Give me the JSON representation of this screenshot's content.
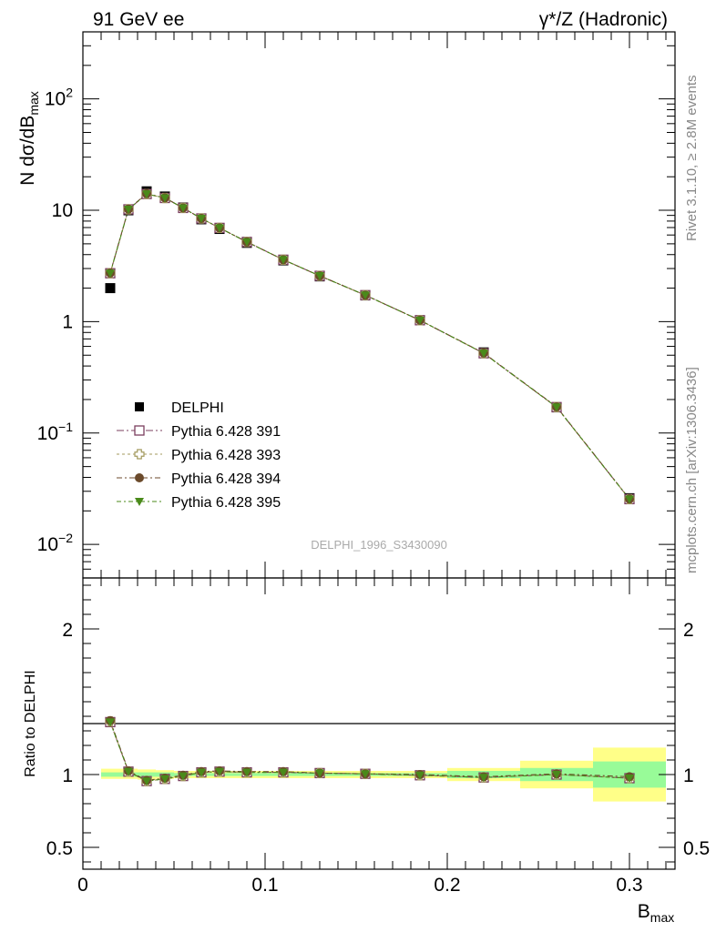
{
  "header": {
    "left": "91 GeV ee",
    "right": "γ*/Z (Hadronic)"
  },
  "side_labels": {
    "rivet": "Rivet 3.1.10, ≥ 2.8M events",
    "mcplots": "mcplots.cern.ch [arXiv:1306.3436]"
  },
  "watermark": "DELPHI_1996_S3430090",
  "colors": {
    "data": "#000000",
    "p391": "#7b3f5f",
    "p393": "#a39a5e",
    "p394": "#6b4a2b",
    "p395": "#4a8a1a",
    "band_inner": "#98fb98",
    "band_outer": "#ffff88"
  },
  "chart_data": [
    {
      "type": "line",
      "panel": "main",
      "ylabel": "N dσ/dB",
      "ylabel_sub": "max",
      "y_scale": "log",
      "ylim": [
        0.005,
        400
      ],
      "xlim": [
        0,
        0.325
      ],
      "y_ticks": [
        {
          "v": 0.01,
          "base": "10",
          "exp": "−2"
        },
        {
          "v": 0.1,
          "base": "10",
          "exp": "−1"
        },
        {
          "v": 1,
          "base": "1",
          "exp": ""
        },
        {
          "v": 10,
          "base": "10",
          "exp": ""
        },
        {
          "v": 100,
          "base": "10",
          "exp": "2"
        }
      ],
      "x": [
        0.015,
        0.025,
        0.035,
        0.045,
        0.055,
        0.065,
        0.075,
        0.09,
        0.11,
        0.13,
        0.155,
        0.185,
        0.22,
        0.26,
        0.3
      ],
      "data": [
        2.0,
        10.0,
        14.8,
        13.3,
        10.6,
        8.3,
        6.8,
        5.1,
        3.55,
        2.55,
        1.72,
        1.03,
        0.53,
        0.17,
        0.026
      ],
      "series": [
        {
          "name": "Pythia 6.428 391",
          "key": "p391",
          "marker": "open-square",
          "values": [
            2.72,
            10.2,
            14.0,
            12.9,
            10.5,
            8.45,
            6.95,
            5.2,
            3.6,
            2.58,
            1.73,
            1.03,
            0.52,
            0.171,
            0.0255
          ]
        },
        {
          "name": "Pythia 6.428 393",
          "key": "p393",
          "marker": "open-cross",
          "values": [
            2.73,
            10.2,
            14.0,
            12.9,
            10.5,
            8.45,
            6.95,
            5.2,
            3.6,
            2.58,
            1.73,
            1.03,
            0.52,
            0.171,
            0.0255
          ]
        },
        {
          "name": "Pythia 6.428 394",
          "key": "p394",
          "marker": "filled-circle",
          "values": [
            2.74,
            10.25,
            14.1,
            12.95,
            10.5,
            8.45,
            6.95,
            5.2,
            3.6,
            2.58,
            1.73,
            1.03,
            0.523,
            0.172,
            0.0256
          ]
        },
        {
          "name": "Pythia 6.428 395",
          "key": "p395",
          "marker": "filled-triangle-down",
          "values": [
            2.72,
            10.2,
            14.0,
            12.9,
            10.5,
            8.45,
            6.95,
            5.2,
            3.6,
            2.58,
            1.73,
            1.03,
            0.52,
            0.171,
            0.0255
          ]
        }
      ],
      "legend": {
        "data_name": "DELPHI",
        "position": "lower-left"
      }
    },
    {
      "type": "line",
      "panel": "ratio",
      "ylabel": "Ratio to DELPHI",
      "xlabel": "B",
      "xlabel_sub": "max",
      "ylim": [
        0.35,
        2.35
      ],
      "xlim": [
        0,
        0.325
      ],
      "y_ticks": [
        {
          "v": 0.5,
          "label": "0.5"
        },
        {
          "v": 1,
          "label": "1"
        },
        {
          "v": 2,
          "label": "2"
        }
      ],
      "x_ticks": [
        {
          "v": 0,
          "label": "0"
        },
        {
          "v": 0.1,
          "label": "0.1"
        },
        {
          "v": 0.2,
          "label": "0.2"
        },
        {
          "v": 0.3,
          "label": "0.3"
        }
      ],
      "bands": [
        {
          "x_range": [
            0.01,
            0.02
          ],
          "inner": [
            0.985,
            1.015
          ],
          "outer": [
            0.97,
            1.04
          ]
        },
        {
          "x_range": [
            0.02,
            0.03
          ],
          "inner": [
            0.985,
            1.015
          ],
          "outer": [
            0.97,
            1.04
          ]
        },
        {
          "x_range": [
            0.03,
            0.04
          ],
          "inner": [
            0.985,
            1.015
          ],
          "outer": [
            0.965,
            1.035
          ]
        },
        {
          "x_range": [
            0.04,
            0.05
          ],
          "inner": [
            0.985,
            1.015
          ],
          "outer": [
            0.97,
            1.03
          ]
        },
        {
          "x_range": [
            0.05,
            0.06
          ],
          "inner": [
            0.99,
            1.01
          ],
          "outer": [
            0.975,
            1.025
          ]
        },
        {
          "x_range": [
            0.06,
            0.07
          ],
          "inner": [
            0.99,
            1.01
          ],
          "outer": [
            0.975,
            1.025
          ]
        },
        {
          "x_range": [
            0.07,
            0.08
          ],
          "inner": [
            0.99,
            1.01
          ],
          "outer": [
            0.975,
            1.025
          ]
        },
        {
          "x_range": [
            0.08,
            0.1
          ],
          "inner": [
            0.99,
            1.01
          ],
          "outer": [
            0.975,
            1.025
          ]
        },
        {
          "x_range": [
            0.1,
            0.12
          ],
          "inner": [
            0.99,
            1.01
          ],
          "outer": [
            0.975,
            1.025
          ]
        },
        {
          "x_range": [
            0.12,
            0.14
          ],
          "inner": [
            0.99,
            1.01
          ],
          "outer": [
            0.975,
            1.025
          ]
        },
        {
          "x_range": [
            0.14,
            0.17
          ],
          "inner": [
            0.99,
            1.01
          ],
          "outer": [
            0.975,
            1.025
          ]
        },
        {
          "x_range": [
            0.17,
            0.2
          ],
          "inner": [
            0.99,
            1.01
          ],
          "outer": [
            0.975,
            1.025
          ]
        },
        {
          "x_range": [
            0.2,
            0.24
          ],
          "inner": [
            0.975,
            1.025
          ],
          "outer": [
            0.955,
            1.045
          ]
        },
        {
          "x_range": [
            0.24,
            0.28
          ],
          "inner": [
            0.955,
            1.045
          ],
          "outer": [
            0.905,
            1.095
          ]
        },
        {
          "x_range": [
            0.28,
            0.32
          ],
          "inner": [
            0.91,
            1.09
          ],
          "outer": [
            0.815,
            1.185
          ]
        }
      ],
      "x": [
        0.015,
        0.025,
        0.035,
        0.045,
        0.055,
        0.065,
        0.075,
        0.09,
        0.11,
        0.13,
        0.155,
        0.185,
        0.22,
        0.26,
        0.3
      ],
      "series": [
        {
          "name": "Pythia 6.428 391",
          "key": "p391",
          "marker": "open-square",
          "values": [
            1.36,
            1.02,
            0.955,
            0.97,
            0.99,
            1.015,
            1.02,
            1.015,
            1.015,
            1.01,
            1.005,
            0.995,
            0.98,
            1.0,
            0.975
          ]
        },
        {
          "name": "Pythia 6.428 393",
          "key": "p393",
          "marker": "open-cross",
          "values": [
            1.365,
            1.02,
            0.955,
            0.97,
            0.99,
            1.015,
            1.02,
            1.015,
            1.015,
            1.01,
            1.005,
            0.995,
            0.98,
            1.0,
            0.975
          ]
        },
        {
          "name": "Pythia 6.428 394",
          "key": "p394",
          "marker": "filled-circle",
          "values": [
            1.37,
            1.025,
            0.96,
            0.975,
            0.995,
            1.02,
            1.025,
            1.02,
            1.02,
            1.01,
            1.005,
            1.0,
            0.985,
            1.005,
            0.985
          ]
        },
        {
          "name": "Pythia 6.428 395",
          "key": "p395",
          "marker": "filled-triangle-down",
          "values": [
            1.36,
            1.02,
            0.955,
            0.97,
            0.99,
            1.015,
            1.02,
            1.015,
            1.015,
            1.01,
            1.005,
            0.995,
            0.98,
            1.0,
            0.975
          ]
        }
      ]
    }
  ]
}
